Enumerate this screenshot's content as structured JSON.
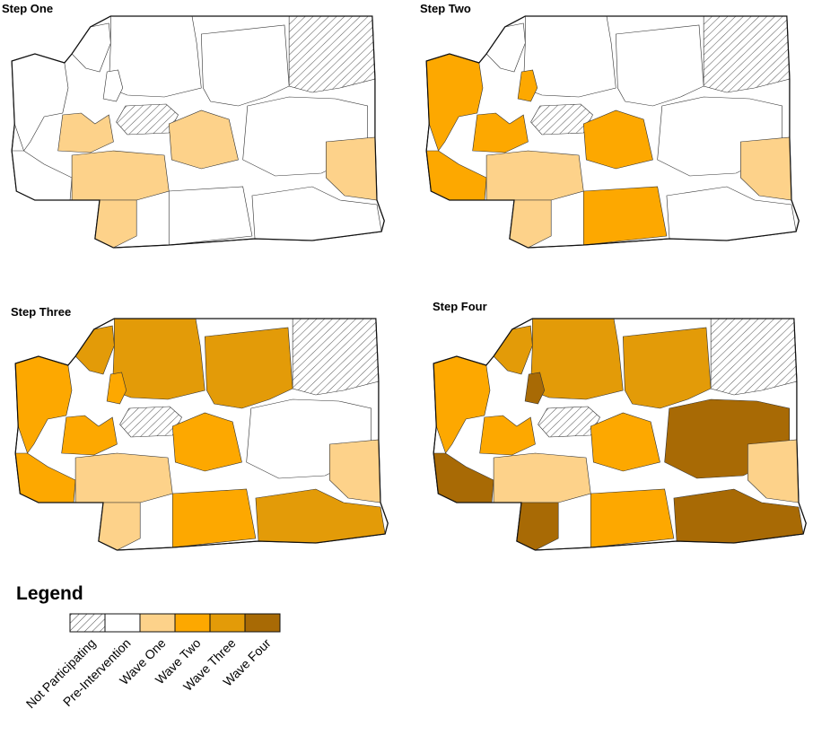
{
  "panels": [
    {
      "title": "Step One",
      "step": 1
    },
    {
      "title": "Step Two",
      "step": 2
    },
    {
      "title": "Step Three",
      "step": 3
    },
    {
      "title": "Step Four",
      "step": 4
    }
  ],
  "legend": {
    "title": "Legend",
    "categories": [
      {
        "label": "Not Participating",
        "color": "hatch"
      },
      {
        "label": "Pre-Intervention",
        "color": "#ffffff"
      },
      {
        "label": "Wave One",
        "color": "#fdd28a"
      },
      {
        "label": "Wave Two",
        "color": "#fda800"
      },
      {
        "label": "Wave Three",
        "color": "#e39b08"
      },
      {
        "label": "Wave Four",
        "color": "#a86a05"
      }
    ]
  },
  "region_status": [
    {
      "region": "north-coast",
      "by_step": [
        "pre",
        "two",
        "two",
        "two"
      ]
    },
    {
      "region": "northwest",
      "by_step": [
        "pre",
        "pre",
        "three",
        "three"
      ]
    },
    {
      "region": "north-central",
      "by_step": [
        "pre",
        "pre",
        "three",
        "three"
      ]
    },
    {
      "region": "northeast-hatched",
      "by_step": [
        "not",
        "not",
        "not",
        "not"
      ]
    },
    {
      "region": "puget-inlet",
      "by_step": [
        "pre",
        "two",
        "two",
        "four"
      ]
    },
    {
      "region": "central-west",
      "by_step": [
        "pre",
        "pre",
        "three",
        "three"
      ]
    },
    {
      "region": "central-hatched",
      "by_step": [
        "not",
        "not",
        "not",
        "not"
      ]
    },
    {
      "region": "central",
      "by_step": [
        "one",
        "two",
        "two",
        "two"
      ]
    },
    {
      "region": "southwest-coast",
      "by_step": [
        "pre",
        "two",
        "two",
        "four"
      ]
    },
    {
      "region": "south-central",
      "by_step": [
        "one",
        "one",
        "one",
        "one"
      ]
    },
    {
      "region": "lower-columbia",
      "by_step": [
        "one",
        "one",
        "one",
        "four"
      ]
    },
    {
      "region": "yakima",
      "by_step": [
        "one",
        "two",
        "two",
        "two"
      ]
    },
    {
      "region": "east-central",
      "by_step": [
        "pre",
        "pre",
        "pre",
        "four"
      ]
    },
    {
      "region": "southeast-border",
      "by_step": [
        "one",
        "one",
        "one",
        "one"
      ]
    },
    {
      "region": "south-east",
      "by_step": [
        "pre",
        "two",
        "two",
        "two"
      ]
    },
    {
      "region": "far-southeast",
      "by_step": [
        "pre",
        "pre",
        "three",
        "four"
      ]
    }
  ]
}
